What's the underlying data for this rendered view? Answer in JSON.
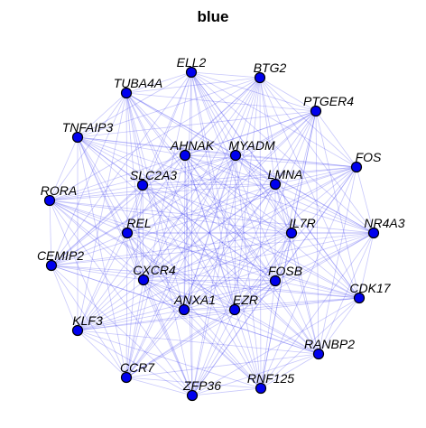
{
  "title": "blue",
  "colors": {
    "node": "#0000ee",
    "edge": "#3a3af0",
    "background": "#ffffff"
  },
  "nodes": [
    "ELL2",
    "BTG2",
    "TUBA4A",
    "PTGER4",
    "TNFAIP3",
    "AHNAK",
    "MYADM",
    "FOS",
    "SLC2A3",
    "LMNA",
    "RORA",
    "REL",
    "IL7R",
    "NR4A3",
    "CEMIP2",
    "CXCR4",
    "FOSB",
    "CDK17",
    "ANXA1",
    "EZR",
    "KLF3",
    "RANBP2",
    "CCR7",
    "ZFP36",
    "RNF125"
  ]
}
